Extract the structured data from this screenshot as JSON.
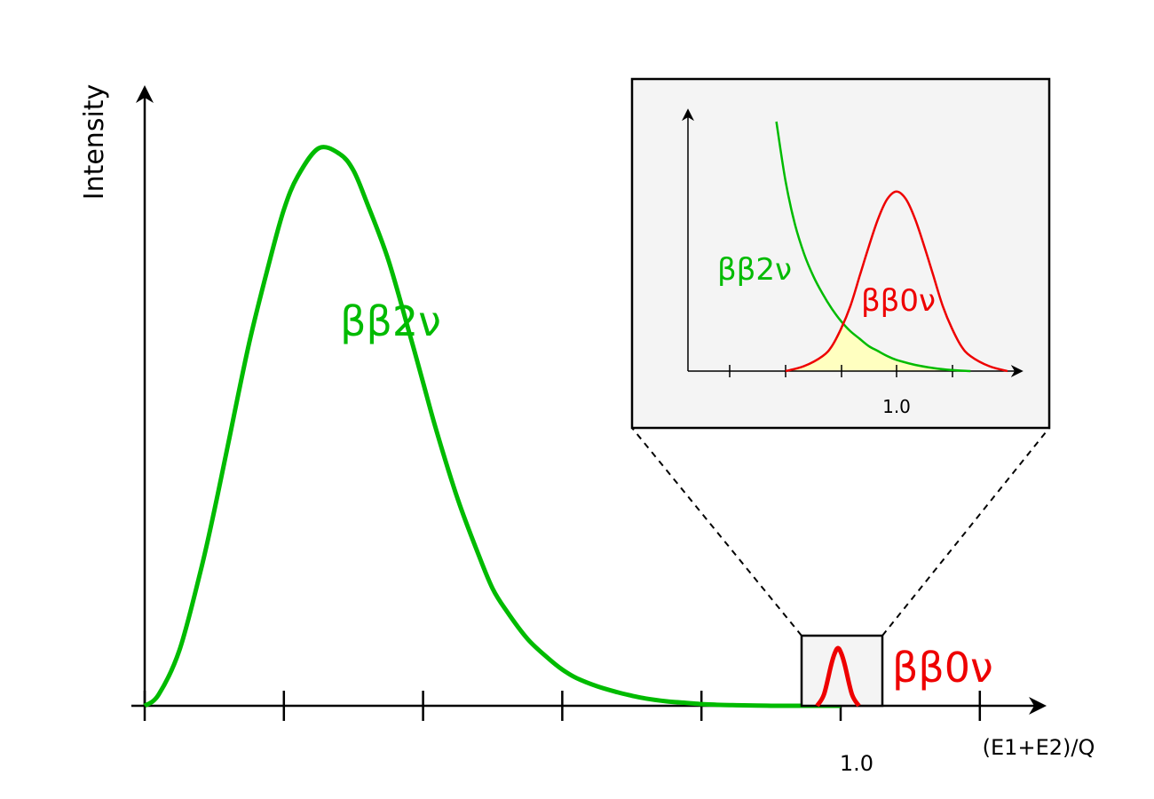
{
  "chart_data": [
    {
      "type": "line",
      "xlabel": "(E1+E2)/Q",
      "ylabel": "Intensity",
      "xlim": [
        0,
        1.2
      ],
      "ylim": [
        0,
        1.1
      ],
      "x_ticks": [
        0,
        0.2,
        0.4,
        0.6,
        0.8,
        1.0,
        1.2
      ],
      "x_tick_labels": [
        "",
        "",
        "",
        "",
        "",
        "1.0",
        ""
      ],
      "series": [
        {
          "name": "ββ2ν",
          "color": "#00bb00",
          "x": [
            0,
            0.02,
            0.05,
            0.08,
            0.1,
            0.12,
            0.15,
            0.18,
            0.2,
            0.22,
            0.25,
            0.28,
            0.3,
            0.32,
            0.35,
            0.38,
            0.4,
            0.42,
            0.45,
            0.48,
            0.5,
            0.52,
            0.55,
            0.58,
            0.6,
            0.62,
            0.65,
            0.68,
            0.7,
            0.72,
            0.75,
            0.78,
            0.8,
            0.82,
            0.85,
            0.88,
            0.9,
            0.92,
            0.95,
            0.98,
            1.0
          ],
          "values": [
            0,
            0.02,
            0.1,
            0.24,
            0.35,
            0.47,
            0.65,
            0.8,
            0.89,
            0.95,
            1.0,
            0.99,
            0.96,
            0.9,
            0.8,
            0.67,
            0.58,
            0.49,
            0.37,
            0.27,
            0.21,
            0.17,
            0.12,
            0.085,
            0.065,
            0.05,
            0.035,
            0.024,
            0.018,
            0.013,
            0.008,
            0.005,
            0.003,
            0.002,
            0.001,
            0.0005,
            0,
            0,
            0,
            0,
            0
          ]
        },
        {
          "name": "ββ0ν",
          "color": "#ee0000",
          "x": [
            0.97,
            0.98,
            0.99,
            0.995,
            1.0,
            1.005,
            1.01,
            1.02,
            1.03
          ],
          "values": [
            0,
            0.02,
            0.07,
            0.09,
            0.1,
            0.09,
            0.07,
            0.02,
            0
          ]
        }
      ],
      "inset": {
        "xlim": [
          0.9,
          1.1
        ],
        "ylim": [
          0,
          1
        ],
        "x_ticks": [
          0.9,
          0.93,
          0.97,
          1.0,
          1.03
        ],
        "x_tick_labels": [
          "",
          "",
          "",
          "1.0",
          ""
        ],
        "series": [
          {
            "name": "ββ2ν",
            "color": "#00bb00",
            "x": [
              0.935,
              0.94,
              0.945,
              0.95,
              0.955,
              0.96,
              0.965,
              0.97,
              0.975,
              0.98,
              0.985,
              0.99,
              0.995,
              1.0,
              1.01,
              1.02,
              1.03,
              1.04
            ],
            "values": [
              1.0,
              0.76,
              0.59,
              0.47,
              0.38,
              0.31,
              0.25,
              0.2,
              0.16,
              0.13,
              0.1,
              0.08,
              0.06,
              0.045,
              0.025,
              0.012,
              0.004,
              0.0
            ]
          },
          {
            "name": "ββ0ν",
            "color": "#ee0000",
            "x": [
              0.94,
              0.95,
              0.96,
              0.965,
              0.97,
              0.975,
              0.98,
              0.985,
              0.99,
              0.995,
              1.0,
              1.005,
              1.01,
              1.015,
              1.02,
              1.025,
              1.03,
              1.035,
              1.04,
              1.05,
              1.06
            ],
            "values": [
              0.0,
              0.02,
              0.06,
              0.1,
              0.17,
              0.26,
              0.38,
              0.5,
              0.61,
              0.69,
              0.72,
              0.69,
              0.61,
              0.5,
              0.38,
              0.26,
              0.17,
              0.1,
              0.06,
              0.02,
              0.0
            ]
          }
        ]
      }
    }
  ]
}
